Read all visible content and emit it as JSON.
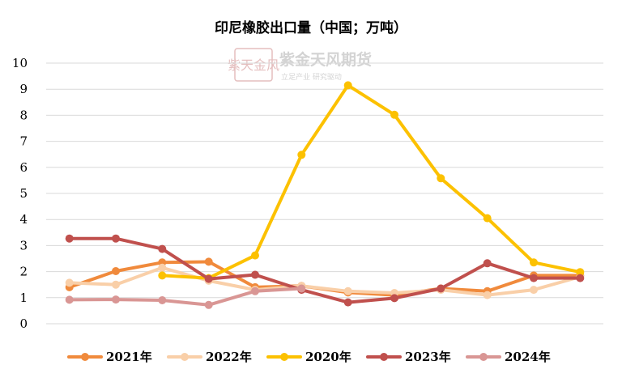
{
  "chart_data": {
    "type": "line",
    "title": "印尼橡胶出口量（中国；万吨）",
    "xlabel": "",
    "ylabel": "",
    "ylim": [
      0,
      10
    ],
    "yticks": [
      "0",
      "1",
      "2",
      "3",
      "4",
      "5",
      "6",
      "7",
      "8",
      "9",
      "10"
    ],
    "x": [
      1,
      2,
      3,
      4,
      5,
      6,
      7,
      8,
      9,
      10,
      11,
      12
    ],
    "grid": true,
    "legend_position": "bottom",
    "series": [
      {
        "name": "2021年",
        "color": "#f08a3c",
        "values": [
          1.4,
          2.02,
          2.35,
          2.38,
          1.4,
          1.45,
          1.2,
          1.1,
          1.35,
          1.25,
          1.85,
          1.85
        ]
      },
      {
        "name": "2022年",
        "color": "#f9cfa8",
        "values": [
          1.57,
          1.5,
          2.15,
          1.65,
          1.3,
          1.45,
          1.25,
          1.18,
          1.3,
          1.1,
          1.3,
          1.8
        ]
      },
      {
        "name": "2020年",
        "color": "#fcc100",
        "values": [
          null,
          null,
          1.85,
          1.75,
          2.62,
          6.48,
          9.15,
          8.02,
          5.58,
          4.05,
          2.35,
          1.98
        ]
      },
      {
        "name": "2023年",
        "color": "#c0504d",
        "values": [
          3.27,
          3.27,
          2.87,
          1.72,
          1.88,
          1.3,
          0.82,
          0.98,
          1.35,
          2.32,
          1.75,
          1.75
        ]
      },
      {
        "name": "2024年",
        "color": "#d99694",
        "values": [
          0.92,
          0.93,
          0.9,
          0.72,
          1.25,
          1.35,
          null,
          null,
          null,
          null,
          null,
          null
        ]
      }
    ]
  },
  "watermark": {
    "brand": "紫金天风期货",
    "slogan": "立足产业  研究驱动",
    "seal": "紫天金风"
  }
}
